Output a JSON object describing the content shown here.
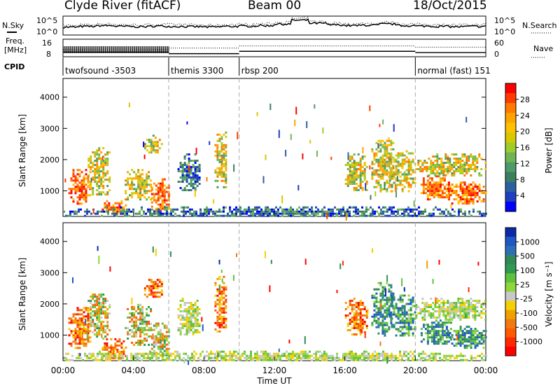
{
  "header": {
    "station": "Clyde River (fitACF)",
    "beam": "Beam 00",
    "date": "18/Oct/2015"
  },
  "status_panel": {
    "nsky_label": "N.Sky",
    "nsky_ticks": [
      "10^5",
      "10^0"
    ],
    "nsearch_label": "N.Search",
    "nsearch_ticks": [
      "10^5",
      "10^0"
    ],
    "freq_label_1": "Freq.",
    "freq_label_2": "[MHz]",
    "freq_ticks": [
      "16",
      "8"
    ],
    "nave_label": "Nave",
    "nave_ticks": [
      "60",
      "0"
    ],
    "cpid_label": "CPID"
  },
  "cpid_segments": [
    {
      "label": "twofsound -3503",
      "start_hour": 0
    },
    {
      "label": "themis 3300",
      "start_hour": 6
    },
    {
      "label": "rbsp 200",
      "start_hour": 10
    },
    {
      "label": "normal (fast) 151",
      "start_hour": 20
    }
  ],
  "time_axis": {
    "label": "Time UT",
    "ticks": [
      "00:00",
      "04:00",
      "08:00",
      "12:00",
      "16:00",
      "20:00",
      "00:00"
    ],
    "tick_hours": [
      0,
      4,
      8,
      12,
      16,
      20,
      24
    ]
  },
  "chart_data": [
    {
      "type": "heatmap",
      "name": "power",
      "ylabel": "Slant Range [km]",
      "yticks": [
        1000,
        2000,
        3000,
        4000
      ],
      "ylim": [
        180,
        4600
      ],
      "xlim_hours": [
        0,
        24
      ],
      "colorbar": {
        "label": "Power [dB]",
        "ticks": [
          "28",
          "24",
          "20",
          "16",
          "12",
          "8",
          "4"
        ],
        "colors": [
          "#ff0000",
          "#ff3b00",
          "#ff7b00",
          "#ffa300",
          "#ffc000",
          "#d8c800",
          "#9fcc2c",
          "#6fb553",
          "#4f9a6a",
          "#3a7f5e",
          "#2f5fa3",
          "#1f3fbf",
          "#0000ff"
        ]
      },
      "regions": [
        {
          "t": [
            0.3,
            1.6
          ],
          "r": [
            600,
            1700
          ],
          "level": "high"
        },
        {
          "t": [
            1.4,
            2.6
          ],
          "r": [
            900,
            2400
          ],
          "level": "mid"
        },
        {
          "t": [
            2.2,
            3.6
          ],
          "r": [
            250,
            700
          ],
          "level": "high"
        },
        {
          "t": [
            3.5,
            5.0
          ],
          "r": [
            700,
            1700
          ],
          "level": "mid"
        },
        {
          "t": [
            4.6,
            5.6
          ],
          "r": [
            2200,
            2800
          ],
          "level": "mid"
        },
        {
          "t": [
            5.0,
            6.0
          ],
          "r": [
            300,
            1400
          ],
          "level": "high"
        },
        {
          "t": [
            6.5,
            7.8
          ],
          "r": [
            1000,
            2200
          ],
          "level": "low"
        },
        {
          "t": [
            8.6,
            9.3
          ],
          "r": [
            1100,
            2900
          ],
          "level": "mid"
        },
        {
          "t": [
            16.0,
            17.2
          ],
          "r": [
            1000,
            2200
          ],
          "level": "mid"
        },
        {
          "t": [
            17.5,
            18.8
          ],
          "r": [
            1000,
            2700
          ],
          "level": "mid"
        },
        {
          "t": [
            18.5,
            20.0
          ],
          "r": [
            1000,
            2300
          ],
          "level": "mid"
        },
        {
          "t": [
            20.3,
            22.0
          ],
          "r": [
            700,
            1500
          ],
          "level": "high"
        },
        {
          "t": [
            21.8,
            24.0
          ],
          "r": [
            600,
            1300
          ],
          "level": "high"
        },
        {
          "t": [
            20.0,
            24.0
          ],
          "r": [
            1500,
            2200
          ],
          "level": "mid"
        },
        {
          "t": [
            0.0,
            24.0
          ],
          "r": [
            180,
            500
          ],
          "level": "low"
        }
      ]
    },
    {
      "type": "heatmap",
      "name": "velocity",
      "ylabel": "Slant Range [km]",
      "yticks": [
        1000,
        2000,
        3000,
        4000
      ],
      "ylim": [
        180,
        4600
      ],
      "xlim_hours": [
        0,
        24
      ],
      "colorbar": {
        "label": "Velocity [m s⁻¹]",
        "ticks": [
          "1000",
          "500",
          "100",
          "25",
          "-25",
          "-100",
          "-500",
          "-1000"
        ],
        "colors": [
          "#0a2aa8",
          "#1f57c4",
          "#2c6fb8",
          "#2f8a55",
          "#2e9a52",
          "#5fc23d",
          "#8fd63a",
          "#c8c8c8",
          "#f5d000",
          "#f0a000",
          "#f07a10",
          "#ff5a00",
          "#ff2a00",
          "#ff0000"
        ]
      },
      "regions": [
        {
          "t": [
            0.3,
            1.6
          ],
          "r": [
            600,
            1900
          ],
          "level": "neg"
        },
        {
          "t": [
            1.4,
            2.6
          ],
          "r": [
            900,
            2400
          ],
          "level": "mix"
        },
        {
          "t": [
            2.2,
            3.6
          ],
          "r": [
            250,
            900
          ],
          "level": "neg"
        },
        {
          "t": [
            3.5,
            5.0
          ],
          "r": [
            700,
            2000
          ],
          "level": "mix"
        },
        {
          "t": [
            4.6,
            5.6
          ],
          "r": [
            2200,
            2800
          ],
          "level": "neg"
        },
        {
          "t": [
            5.0,
            6.0
          ],
          "r": [
            300,
            1400
          ],
          "level": "mix"
        },
        {
          "t": [
            6.5,
            7.8
          ],
          "r": [
            1000,
            2200
          ],
          "level": "zero"
        },
        {
          "t": [
            8.6,
            9.3
          ],
          "r": [
            1100,
            2900
          ],
          "level": "neg"
        },
        {
          "t": [
            16.0,
            17.2
          ],
          "r": [
            1000,
            2200
          ],
          "level": "neg"
        },
        {
          "t": [
            17.5,
            18.8
          ],
          "r": [
            1000,
            2700
          ],
          "level": "pos"
        },
        {
          "t": [
            18.5,
            20.0
          ],
          "r": [
            1000,
            2300
          ],
          "level": "pos"
        },
        {
          "t": [
            20.3,
            22.0
          ],
          "r": [
            700,
            1500
          ],
          "level": "pos"
        },
        {
          "t": [
            21.8,
            24.0
          ],
          "r": [
            600,
            1300
          ],
          "level": "pos"
        },
        {
          "t": [
            20.0,
            24.0
          ],
          "r": [
            1500,
            2200
          ],
          "level": "zero"
        },
        {
          "t": [
            0.0,
            24.0
          ],
          "r": [
            180,
            500
          ],
          "level": "zero"
        }
      ]
    }
  ],
  "status_traces": {
    "nsky_level_by_hour": [
      0.35,
      0.4,
      0.45,
      0.4,
      0.38,
      0.42,
      0.4,
      0.38,
      0.36,
      0.4,
      0.42,
      0.45,
      0.55,
      0.8,
      0.6,
      0.5,
      0.45,
      0.48,
      0.55,
      0.45,
      0.42,
      0.4,
      0.38,
      0.4,
      0.4
    ],
    "freq_mhz_by_segment": [
      10.5,
      9.5,
      11.0,
      10.2
    ],
    "nave_by_segment": [
      30,
      38,
      48,
      42
    ]
  }
}
